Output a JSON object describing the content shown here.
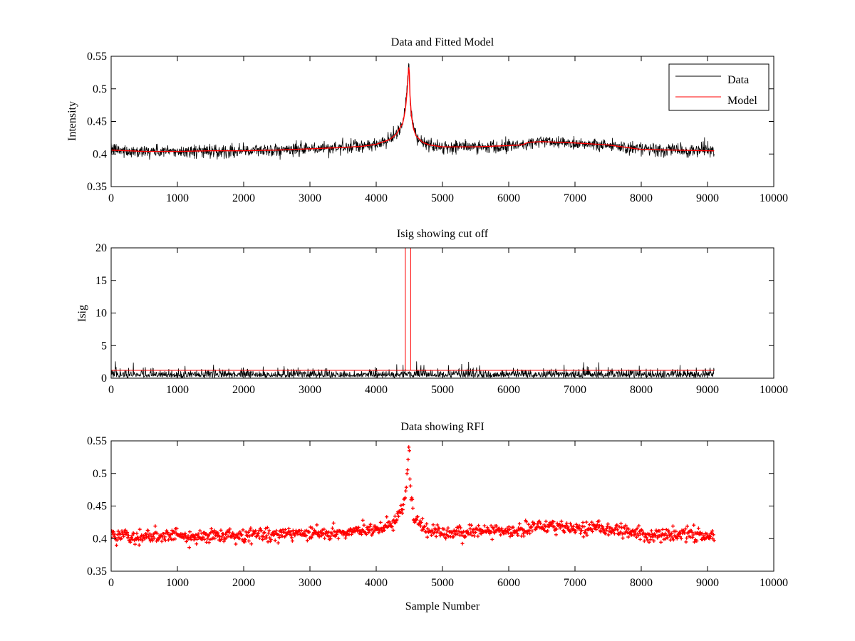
{
  "figure": {
    "background": "#ffffff"
  },
  "colors": {
    "data": "#000000",
    "model": "#ff0000",
    "axis": "#000000"
  },
  "chart_data": [
    {
      "id": "top",
      "type": "line",
      "title": "Data and Fitted Model",
      "xlabel": "",
      "ylabel": "Intensity",
      "xlim": [
        0,
        10000
      ],
      "ylim": [
        0.35,
        0.55
      ],
      "xticks": [
        0,
        1000,
        2000,
        3000,
        4000,
        5000,
        6000,
        7000,
        8000,
        9000,
        10000
      ],
      "xtick_labels": [
        "0",
        "1000",
        "2000",
        "3000",
        "4000",
        "5000",
        "6000",
        "7000",
        "8000",
        "9000",
        "10000"
      ],
      "yticks": [
        0.35,
        0.4,
        0.45,
        0.5,
        0.55
      ],
      "ytick_labels": [
        "0.35",
        "0.4",
        "0.45",
        "0.5",
        "0.55"
      ],
      "legend": {
        "position": "top-right",
        "entries": [
          "Data",
          "Model"
        ]
      },
      "series": [
        {
          "name": "Data",
          "color": "#000000",
          "kind": "noisy",
          "noise": 0.011
        },
        {
          "name": "Model",
          "color": "#ff0000",
          "kind": "smooth",
          "x": [
            0,
            500,
            1000,
            1500,
            2000,
            2500,
            3000,
            3500,
            3800,
            4000,
            4200,
            4300,
            4400,
            4440,
            4470,
            4490,
            4500,
            4510,
            4530,
            4560,
            4600,
            4700,
            4800,
            5000,
            5500,
            6000,
            6200,
            6300,
            6500,
            7000,
            7500,
            8000,
            8500,
            9000,
            9100
          ],
          "y": [
            0.406,
            0.404,
            0.404,
            0.405,
            0.405,
            0.406,
            0.408,
            0.41,
            0.412,
            0.415,
            0.422,
            0.43,
            0.447,
            0.468,
            0.5,
            0.533,
            0.525,
            0.49,
            0.46,
            0.44,
            0.428,
            0.418,
            0.414,
            0.411,
            0.411,
            0.413,
            0.414,
            0.418,
            0.419,
            0.417,
            0.414,
            0.407,
            0.406,
            0.405,
            0.405
          ]
        }
      ]
    },
    {
      "id": "middle",
      "type": "line",
      "title": "Isig showing cut off",
      "xlabel": "",
      "ylabel": "Isig",
      "xlim": [
        0,
        10000
      ],
      "ylim": [
        0,
        20
      ],
      "xticks": [
        0,
        1000,
        2000,
        3000,
        4000,
        5000,
        6000,
        7000,
        8000,
        9000,
        10000
      ],
      "xtick_labels": [
        "0",
        "1000",
        "2000",
        "3000",
        "4000",
        "5000",
        "6000",
        "7000",
        "8000",
        "9000",
        "10000"
      ],
      "yticks": [
        0,
        5,
        10,
        15,
        20
      ],
      "ytick_labels": [
        "0",
        "5",
        "10",
        "15",
        "20"
      ],
      "series": [
        {
          "name": "Isig",
          "color": "#000000",
          "kind": "isig",
          "x_end": 9100
        },
        {
          "name": "Cut off",
          "color": "#ff0000",
          "kind": "cutoff",
          "level": 1.2,
          "x_end": 9100,
          "spikes": [
            4440,
            4520
          ]
        }
      ]
    },
    {
      "id": "bottom",
      "type": "scatter",
      "title": "Data showing RFI",
      "xlabel": "Sample Number",
      "ylabel": "",
      "xlim": [
        0,
        10000
      ],
      "ylim": [
        0.35,
        0.55
      ],
      "xticks": [
        0,
        1000,
        2000,
        3000,
        4000,
        5000,
        6000,
        7000,
        8000,
        9000,
        10000
      ],
      "xtick_labels": [
        "0",
        "1000",
        "2000",
        "3000",
        "4000",
        "5000",
        "6000",
        "7000",
        "8000",
        "9000",
        "10000"
      ],
      "yticks": [
        0.35,
        0.4,
        0.45,
        0.5,
        0.55
      ],
      "ytick_labels": [
        "0.35",
        "0.4",
        "0.45",
        "0.5",
        "0.55"
      ],
      "series": [
        {
          "name": "RFI flagged data",
          "color": "#ff0000",
          "kind": "markers",
          "noise": 0.011
        }
      ]
    }
  ]
}
